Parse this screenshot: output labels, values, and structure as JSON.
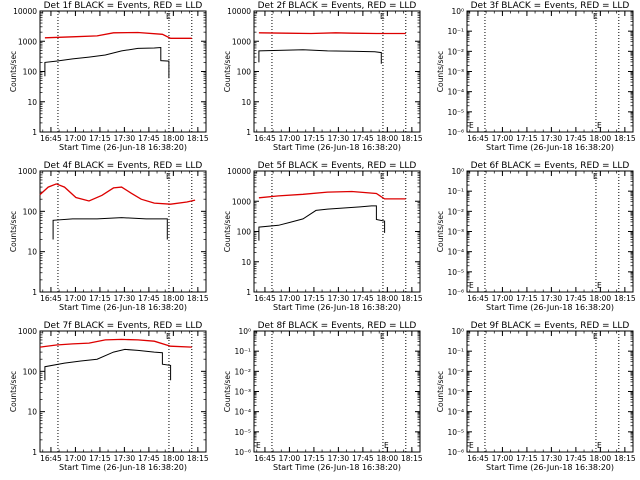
{
  "chart_data": [
    {
      "type": "line",
      "title": "Det 1f BLACK = Events, RED = LLD",
      "xlabel": "Start Time (26-Jun-18 16:38:20)",
      "ylabel": "Counts/sec",
      "ylog": true,
      "y_tick_labels": [
        "1",
        "10",
        "100",
        "1000",
        "10000"
      ],
      "y_tick_exps": [
        0,
        1,
        2,
        3,
        4
      ],
      "x_tick_labels": [
        "16:45",
        "17:00",
        "17:15",
        "17:30",
        "17:45",
        "18:00",
        "18:15"
      ],
      "x_minutes_since_start": [
        6.7,
        21.7,
        36.7,
        51.7,
        66.7,
        81.7,
        96.7
      ],
      "xlim_minutes": [
        0,
        101.7
      ],
      "dotted_lines_minutes": [
        11,
        79,
        93
      ],
      "marker": "E",
      "series": [
        {
          "name": "BLACK = Events",
          "color": "#000000",
          "points": [
            [
              3,
              70
            ],
            [
              3,
              200
            ],
            [
              10,
              220
            ],
            [
              20,
              260
            ],
            [
              30,
              300
            ],
            [
              40,
              350
            ],
            [
              50,
              480
            ],
            [
              60,
              580
            ],
            [
              70,
              600
            ],
            [
              74,
              620
            ],
            [
              74,
              230
            ],
            [
              79,
              220
            ],
            [
              79,
              60
            ]
          ]
        },
        {
          "name": "RED = LLD",
          "color": "#dd0000",
          "points": [
            [
              3,
              1300
            ],
            [
              20,
              1400
            ],
            [
              35,
              1500
            ],
            [
              45,
              1900
            ],
            [
              60,
              1950
            ],
            [
              75,
              1700
            ],
            [
              80,
              1250
            ],
            [
              93,
              1250
            ]
          ]
        }
      ]
    },
    {
      "type": "line",
      "title": "Det 2f BLACK = Events, RED = LLD",
      "xlabel": "Start Time (26-Jun-18 16:38:20)",
      "ylabel": "Counts/sec",
      "ylog": true,
      "y_tick_labels": [
        "1",
        "10",
        "100",
        "1000",
        "10000"
      ],
      "y_tick_exps": [
        0,
        1,
        2,
        3,
        4
      ],
      "x_tick_labels": [
        "16:45",
        "17:00",
        "17:15",
        "17:30",
        "17:45",
        "18:00",
        "18:15"
      ],
      "x_minutes_since_start": [
        6.7,
        21.7,
        36.7,
        51.7,
        66.7,
        81.7,
        96.7
      ],
      "xlim_minutes": [
        0,
        101.7
      ],
      "dotted_lines_minutes": [
        11,
        79,
        93
      ],
      "marker": "E",
      "series": [
        {
          "name": "BLACK = Events",
          "color": "#000000",
          "points": [
            [
              3,
              200
            ],
            [
              3,
              480
            ],
            [
              15,
              500
            ],
            [
              30,
              520
            ],
            [
              45,
              480
            ],
            [
              60,
              470
            ],
            [
              74,
              450
            ],
            [
              78,
              420
            ],
            [
              78,
              180
            ]
          ]
        },
        {
          "name": "RED = LLD",
          "color": "#dd0000",
          "points": [
            [
              3,
              1900
            ],
            [
              20,
              1850
            ],
            [
              35,
              1800
            ],
            [
              50,
              1900
            ],
            [
              60,
              1850
            ],
            [
              75,
              1800
            ],
            [
              93,
              1800
            ]
          ]
        }
      ]
    },
    {
      "type": "line",
      "title": "Det 3f BLACK = Events, RED = LLD",
      "xlabel": "Start Time (26-Jun-18 16:38:20)",
      "ylabel": "Counts/sec",
      "ylog": true,
      "y_tick_labels": [
        "10⁰",
        "10⁻¹",
        "10⁻²",
        "10⁻³",
        "10⁻⁴",
        "10⁻⁵",
        "10⁻⁶"
      ],
      "y_tick_exps": [
        0,
        -1,
        -2,
        -3,
        -4,
        -5,
        -6
      ],
      "x_tick_labels": [
        "16:45",
        "17:00",
        "17:15",
        "17:30",
        "17:45",
        "18:00",
        "18:15"
      ],
      "x_minutes_since_start": [
        6.7,
        21.7,
        36.7,
        51.7,
        66.7,
        81.7,
        96.7
      ],
      "xlim_minutes": [
        0,
        101.7
      ],
      "dotted_lines_minutes": [
        11,
        79,
        93
      ],
      "marker": "E",
      "marker2": "E",
      "series": []
    },
    {
      "type": "line",
      "title": "Det 4f BLACK = Events, RED = LLD",
      "xlabel": "Start Time (26-Jun-18 16:38:20)",
      "ylabel": "Counts/sec",
      "ylog": true,
      "y_tick_labels": [
        "1",
        "10",
        "100",
        "1000"
      ],
      "y_tick_exps": [
        0,
        1,
        2,
        3
      ],
      "x_tick_labels": [
        "16:45",
        "17:00",
        "17:15",
        "17:30",
        "17:45",
        "18:00",
        "18:15"
      ],
      "x_minutes_since_start": [
        6.7,
        21.7,
        36.7,
        51.7,
        66.7,
        81.7,
        96.7
      ],
      "xlim_minutes": [
        0,
        101.7
      ],
      "dotted_lines_minutes": [
        11,
        79,
        93
      ],
      "marker": "E",
      "series": [
        {
          "name": "BLACK = Events",
          "color": "#000000",
          "points": [
            [
              8,
              20
            ],
            [
              8,
              60
            ],
            [
              20,
              65
            ],
            [
              35,
              65
            ],
            [
              50,
              70
            ],
            [
              65,
              65
            ],
            [
              78,
              65
            ],
            [
              78,
              20
            ]
          ]
        },
        {
          "name": "RED = LLD",
          "color": "#dd0000",
          "points": [
            [
              0,
              260
            ],
            [
              5,
              400
            ],
            [
              10,
              480
            ],
            [
              15,
              400
            ],
            [
              22,
              220
            ],
            [
              30,
              180
            ],
            [
              38,
              250
            ],
            [
              45,
              380
            ],
            [
              50,
              400
            ],
            [
              56,
              280
            ],
            [
              62,
              200
            ],
            [
              70,
              160
            ],
            [
              80,
              150
            ],
            [
              90,
              170
            ],
            [
              95,
              190
            ]
          ]
        }
      ]
    },
    {
      "type": "line",
      "title": "Det 5f BLACK = Events, RED = LLD",
      "xlabel": "Start Time (26-Jun-18 16:38:20)",
      "ylabel": "Counts/sec",
      "ylog": true,
      "y_tick_labels": [
        "1",
        "10",
        "100",
        "1000",
        "10000"
      ],
      "y_tick_exps": [
        0,
        1,
        2,
        3,
        4
      ],
      "x_tick_labels": [
        "16:45",
        "17:00",
        "17:15",
        "17:30",
        "17:45",
        "18:00",
        "18:15"
      ],
      "x_minutes_since_start": [
        6.7,
        21.7,
        36.7,
        51.7,
        66.7,
        81.7,
        96.7
      ],
      "xlim_minutes": [
        0,
        101.7
      ],
      "dotted_lines_minutes": [
        11,
        79,
        93
      ],
      "marker": "E",
      "series": [
        {
          "name": "BLACK = Events",
          "color": "#000000",
          "points": [
            [
              3,
              50
            ],
            [
              3,
              140
            ],
            [
              15,
              160
            ],
            [
              22,
              200
            ],
            [
              30,
              260
            ],
            [
              38,
              500
            ],
            [
              45,
              550
            ],
            [
              55,
              600
            ],
            [
              65,
              650
            ],
            [
              72,
              700
            ],
            [
              75,
              700
            ],
            [
              75,
              250
            ],
            [
              80,
              220
            ],
            [
              80,
              90
            ]
          ]
        },
        {
          "name": "RED = LLD",
          "color": "#dd0000",
          "points": [
            [
              3,
              1300
            ],
            [
              15,
              1500
            ],
            [
              30,
              1700
            ],
            [
              45,
              2000
            ],
            [
              60,
              2100
            ],
            [
              75,
              1800
            ],
            [
              80,
              1200
            ],
            [
              93,
              1200
            ]
          ]
        }
      ]
    },
    {
      "type": "line",
      "title": "Det 6f BLACK = Events, RED = LLD",
      "xlabel": "Start Time (26-Jun-18 16:38:20)",
      "ylabel": "Counts/sec",
      "ylog": true,
      "y_tick_labels": [
        "10⁰",
        "10⁻¹",
        "10⁻²",
        "10⁻³",
        "10⁻⁴",
        "10⁻⁵",
        "10⁻⁶"
      ],
      "y_tick_exps": [
        0,
        -1,
        -2,
        -3,
        -4,
        -5,
        -6
      ],
      "x_tick_labels": [
        "16:45",
        "17:00",
        "17:15",
        "17:30",
        "17:45",
        "18:00",
        "18:15"
      ],
      "x_minutes_since_start": [
        6.7,
        21.7,
        36.7,
        51.7,
        66.7,
        81.7,
        96.7
      ],
      "xlim_minutes": [
        0,
        101.7
      ],
      "dotted_lines_minutes": [
        11,
        79,
        93
      ],
      "marker": "E",
      "marker2": "E",
      "series": []
    },
    {
      "type": "line",
      "title": "Det 7f BLACK = Events, RED = LLD",
      "xlabel": "Start Time (26-Jun-18 16:38:20)",
      "ylabel": "Counts/sec",
      "ylog": true,
      "y_tick_labels": [
        "1",
        "10",
        "100",
        "1000"
      ],
      "y_tick_exps": [
        0,
        1,
        2,
        3
      ],
      "x_tick_labels": [
        "16:45",
        "17:00",
        "17:15",
        "17:30",
        "17:45",
        "18:00",
        "18:15"
      ],
      "x_minutes_since_start": [
        6.7,
        21.7,
        36.7,
        51.7,
        66.7,
        81.7,
        96.7
      ],
      "xlim_minutes": [
        0,
        101.7
      ],
      "dotted_lines_minutes": [
        11,
        79,
        93
      ],
      "marker": "E",
      "series": [
        {
          "name": "BLACK = Events",
          "color": "#000000",
          "points": [
            [
              3,
              60
            ],
            [
              3,
              130
            ],
            [
              15,
              160
            ],
            [
              25,
              180
            ],
            [
              35,
              200
            ],
            [
              45,
              300
            ],
            [
              52,
              350
            ],
            [
              60,
              330
            ],
            [
              70,
              300
            ],
            [
              75,
              290
            ],
            [
              75,
              150
            ],
            [
              80,
              140
            ],
            [
              80,
              60
            ]
          ]
        },
        {
          "name": "RED = LLD",
          "color": "#dd0000",
          "points": [
            [
              0,
              400
            ],
            [
              10,
              450
            ],
            [
              20,
              480
            ],
            [
              30,
              500
            ],
            [
              40,
              600
            ],
            [
              50,
              620
            ],
            [
              60,
              600
            ],
            [
              70,
              560
            ],
            [
              80,
              420
            ],
            [
              93,
              400
            ]
          ]
        }
      ]
    },
    {
      "type": "line",
      "title": "Det 8f BLACK = Events, RED = LLD",
      "xlabel": "Start Time (26-Jun-18 16:38:20)",
      "ylabel": "Counts/sec",
      "ylog": true,
      "y_tick_labels": [
        "10⁰",
        "10⁻¹",
        "10⁻²",
        "10⁻³",
        "10⁻⁴",
        "10⁻⁵",
        "10⁻⁶"
      ],
      "y_tick_exps": [
        0,
        -1,
        -2,
        -3,
        -4,
        -5,
        -6
      ],
      "x_tick_labels": [
        "16:45",
        "17:00",
        "17:15",
        "17:30",
        "17:45",
        "18:00",
        "18:15"
      ],
      "x_minutes_since_start": [
        6.7,
        21.7,
        36.7,
        51.7,
        66.7,
        81.7,
        96.7
      ],
      "xlim_minutes": [
        0,
        101.7
      ],
      "dotted_lines_minutes": [
        11,
        79,
        93
      ],
      "marker": "E",
      "marker2": "E",
      "series": []
    },
    {
      "type": "line",
      "title": "Det 9f BLACK = Events, RED = LLD",
      "xlabel": "Start Time (26-Jun-18 16:38:20)",
      "ylabel": "Counts/sec",
      "ylog": true,
      "y_tick_labels": [
        "10⁰",
        "10⁻¹",
        "10⁻²",
        "10⁻³",
        "10⁻⁴",
        "10⁻⁵",
        "10⁻⁶"
      ],
      "y_tick_exps": [
        0,
        -1,
        -2,
        -3,
        -4,
        -5,
        -6
      ],
      "x_tick_labels": [
        "16:45",
        "17:00",
        "17:15",
        "17:30",
        "17:45",
        "18:00",
        "18:15"
      ],
      "x_minutes_since_start": [
        6.7,
        21.7,
        36.7,
        51.7,
        66.7,
        81.7,
        96.7
      ],
      "xlim_minutes": [
        0,
        101.7
      ],
      "dotted_lines_minutes": [
        11,
        79,
        93
      ],
      "marker": "E",
      "marker2": "E",
      "series": []
    }
  ]
}
